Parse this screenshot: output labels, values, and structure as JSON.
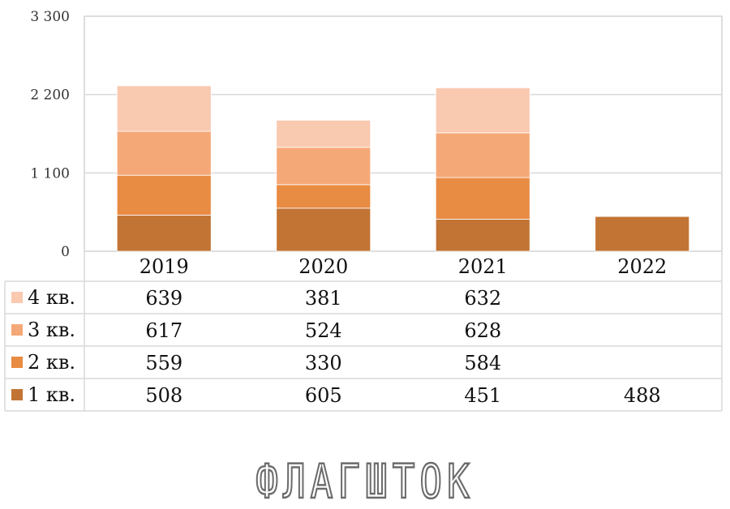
{
  "chart_data": {
    "type": "bar",
    "stacked": true,
    "categories": [
      "2019",
      "2020",
      "2021",
      "2022"
    ],
    "series": [
      {
        "name": "1 кв.",
        "values": [
          508,
          605,
          451,
          488
        ],
        "color": "#c27434"
      },
      {
        "name": "2 кв.",
        "values": [
          559,
          330,
          584,
          null
        ],
        "color": "#e88b43"
      },
      {
        "name": "3 кв.",
        "values": [
          617,
          524,
          628,
          null
        ],
        "color": "#f5a877"
      },
      {
        "name": "4 кв.",
        "values": [
          639,
          381,
          632,
          null
        ],
        "color": "#f9c9b0"
      }
    ],
    "table_rows_order": [
      "4 кв.",
      "3 кв.",
      "2 кв.",
      "1 кв."
    ],
    "yticks": [
      "0",
      "1 100",
      "2 200",
      "3 300"
    ],
    "ylim": [
      0,
      3300
    ],
    "grid": true,
    "legend": "data-table-below",
    "title": "",
    "xlabel": "",
    "ylabel": ""
  },
  "watermark": {
    "text": "ФЛАГШТОК",
    "color": "#6b6b6b"
  }
}
